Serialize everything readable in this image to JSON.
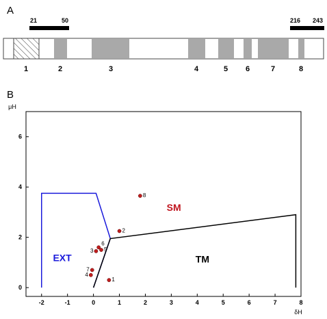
{
  "panel_a": {
    "label": "A",
    "bracket_left": {
      "start_label": "21",
      "end_label": "50",
      "start": 21,
      "end": 50
    },
    "bracket_right": {
      "start_label": "216",
      "end_label": "243",
      "start": 216,
      "end": 243
    },
    "segment_labels": [
      "1",
      "2",
      "3",
      "4",
      "5",
      "6",
      "7",
      "8"
    ],
    "segment_fill": "#a9a9a9",
    "hatched_fill": "hatched"
  },
  "panel_b": {
    "label": "B",
    "region_labels": {
      "ext": {
        "text": "EXT",
        "color": "#1a1adb"
      },
      "sm": {
        "text": "SM",
        "color": "#c0141e"
      },
      "tm": {
        "text": "TM",
        "color": "#000000"
      }
    },
    "point_color": "#c01e1e",
    "ext_boundary_color": "#1a1adb"
  },
  "chart_data": {
    "type": "scatter",
    "xlabel": "δH",
    "ylabel": "μH",
    "xlim": [
      -2.6,
      8
    ],
    "ylim": [
      -0.35,
      7
    ],
    "xticks": [
      "-2",
      "-1",
      "0",
      "1",
      "2",
      "3",
      "4",
      "5",
      "6",
      "7",
      "8"
    ],
    "yticks": [
      "0",
      "2",
      "4",
      "6"
    ],
    "points": [
      {
        "label": "1",
        "x": 0.6,
        "y": 0.3
      },
      {
        "label": "2",
        "x": 1.0,
        "y": 2.25
      },
      {
        "label": "3",
        "x": 0.1,
        "y": 1.45
      },
      {
        "label": "4",
        "x": -0.1,
        "y": 0.5
      },
      {
        "label": "5",
        "x": 0.3,
        "y": 1.5
      },
      {
        "label": "6",
        "x": 0.2,
        "y": 1.6
      },
      {
        "label": "7",
        "x": -0.05,
        "y": 0.7
      },
      {
        "label": "8",
        "x": 1.8,
        "y": 3.65
      }
    ],
    "region_boundaries": {
      "ext": [
        [
          -2,
          0
        ],
        [
          -2,
          3.75
        ],
        [
          0.1,
          3.75
        ],
        [
          0.65,
          1.95
        ],
        [
          0,
          0
        ]
      ],
      "tm": [
        [
          0,
          0
        ],
        [
          0.65,
          1.95
        ],
        [
          7.8,
          2.9
        ],
        [
          7.8,
          0
        ]
      ]
    }
  }
}
